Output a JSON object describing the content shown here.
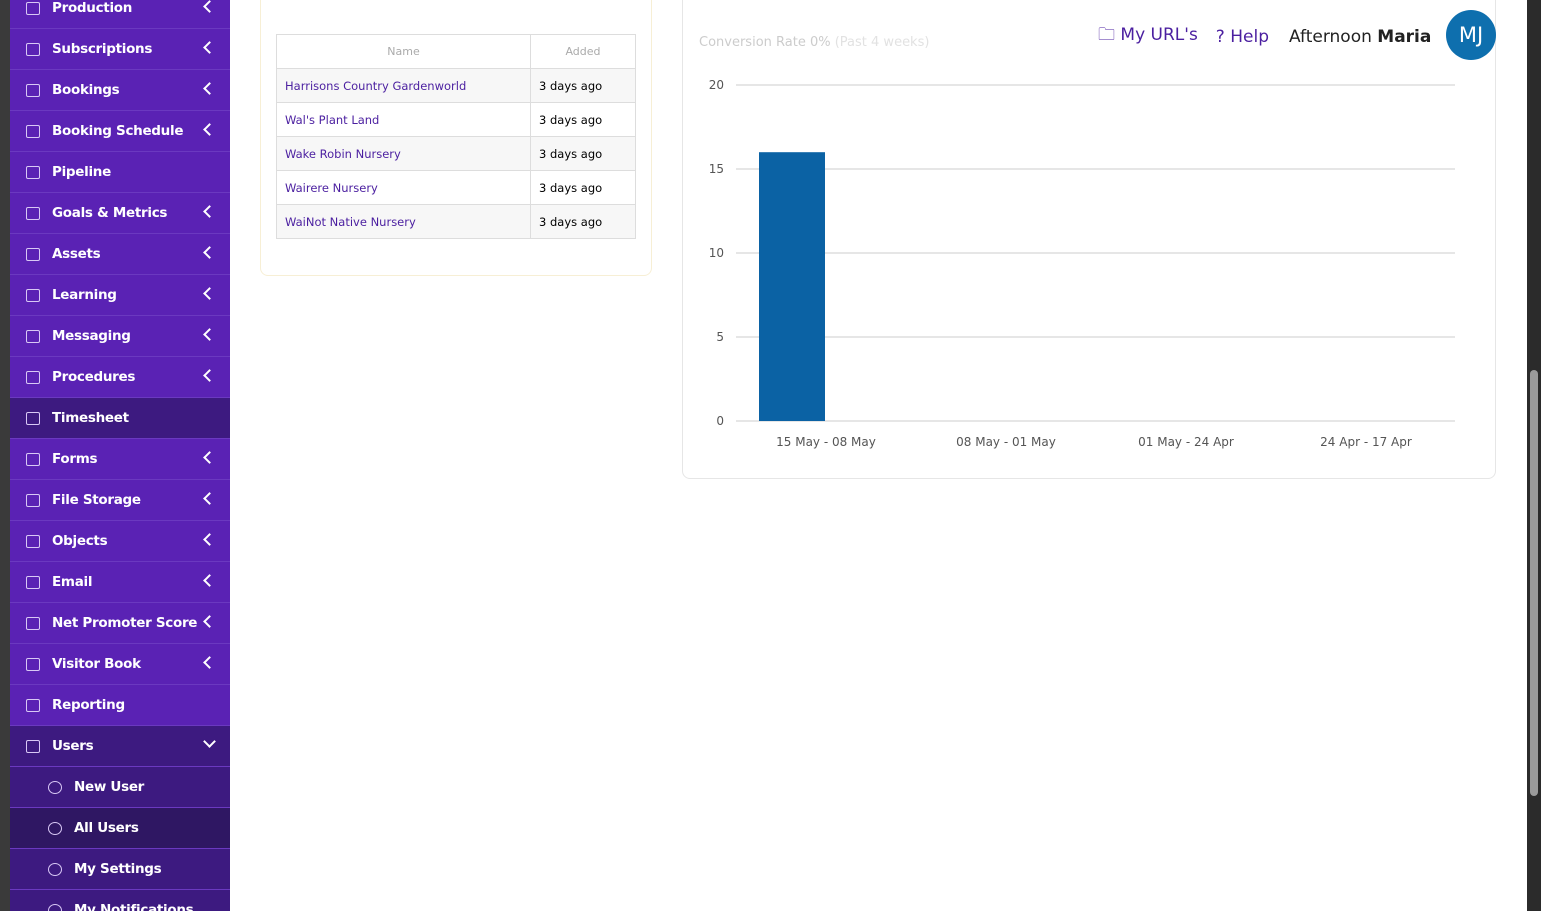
{
  "sidebar": {
    "items": [
      "Production",
      "Subscriptions",
      "Bookings",
      "Booking Schedule",
      "Pipeline",
      "Goals & Metrics",
      "Assets",
      "Learning",
      "Messaging",
      "Procedures",
      "Timesheet",
      "Forms",
      "File Storage",
      "Objects",
      "Email",
      "Net Promoter Score",
      "Visitor Book",
      "Reporting",
      "Users"
    ],
    "subitems": [
      "New User",
      "All Users",
      "My Settings",
      "My Notifications"
    ]
  },
  "header": {
    "urls": "My URL's",
    "help": "Help",
    "greeting": "Afternoon",
    "user": "Maria",
    "avatar": "MJ"
  },
  "table": {
    "columns": [
      "Name",
      "Added"
    ],
    "rows": [
      [
        "Harrisons Country Gardenworld",
        "3 days ago"
      ],
      [
        "Wal's Plant Land",
        "3 days ago"
      ],
      [
        "Wake Robin Nursery",
        "3 days ago"
      ],
      [
        "Wairere Nursery",
        "3 days ago"
      ],
      [
        "WaiNot Native Nursery",
        "3 days ago"
      ]
    ]
  },
  "chart_data": {
    "type": "bar",
    "title": "Conversion Rate 0%",
    "subtitle": "(Past 4 weeks)",
    "categories": [
      "15 May - 08 May",
      "08 May - 01 May",
      "01 May - 24 Apr",
      "24 Apr - 17 Apr"
    ],
    "values": [
      16,
      0,
      0,
      0
    ],
    "color": "#0b62a4",
    "ylim": [
      0,
      20
    ],
    "yticks": [
      0,
      5,
      10,
      15,
      20
    ],
    "grid": true
  }
}
